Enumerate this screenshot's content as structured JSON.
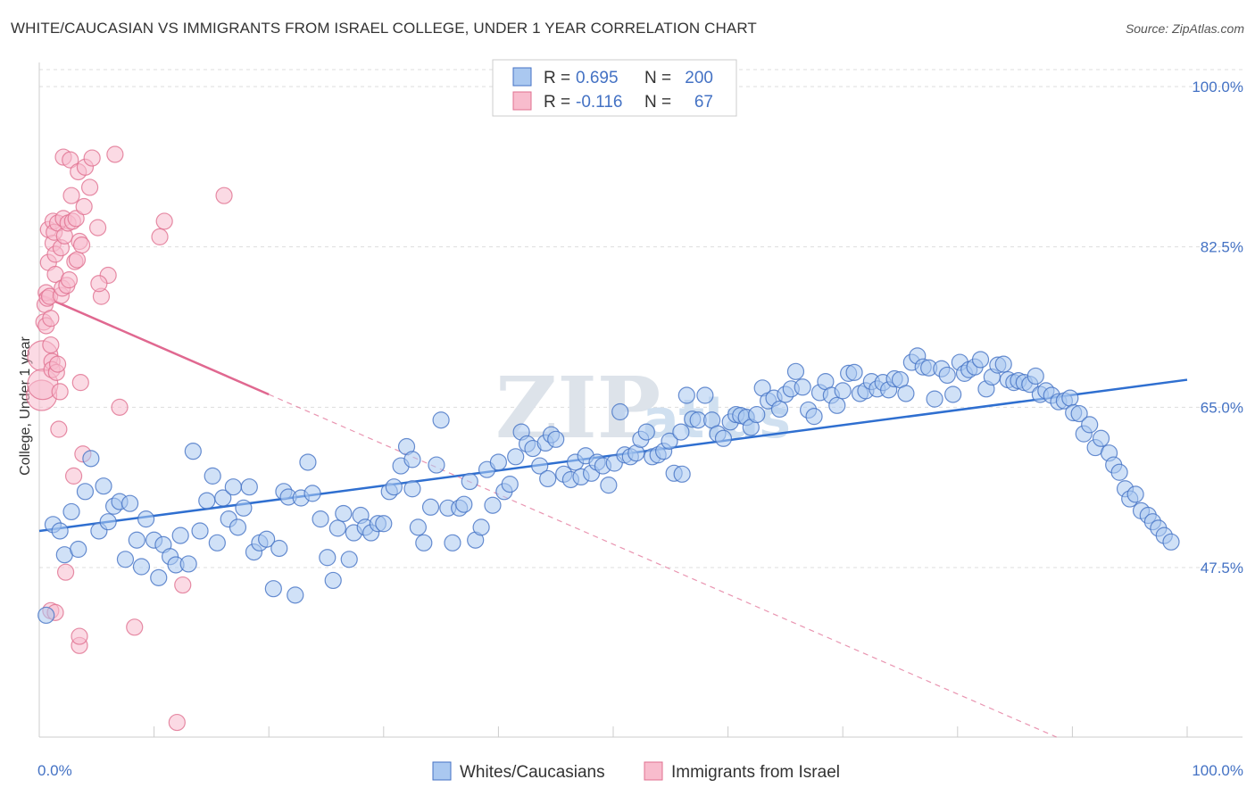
{
  "header": {
    "title": "WHITE/CAUCASIAN VS IMMIGRANTS FROM ISRAEL COLLEGE, UNDER 1 YEAR CORRELATION CHART",
    "source": "Source: ZipAtlas.com"
  },
  "watermark": {
    "zip": "ZIP",
    "atlas": "atlas"
  },
  "colors": {
    "blue": "#4472c4",
    "blue_fill": "#aac8f0",
    "blue_line": "#2f6fd0",
    "pink": "#e07090",
    "pink_fill": "#f8bccd",
    "pink_line": "#e06890",
    "grid": "#dddddd"
  },
  "legend": {
    "rows": [
      {
        "r_label": "R =",
        "r_value": "0.695",
        "n_label": "N =",
        "n_value": "200"
      },
      {
        "r_label": "R =",
        "r_value": "-0.116",
        "n_label": "N =",
        "n_value": "67"
      }
    ]
  },
  "bottom_legend": [
    "Whites/Caucasians",
    "Immigrants from Israel"
  ],
  "chart_data": {
    "type": "scatter",
    "title": "WHITE/CAUCASIAN VS IMMIGRANTS FROM ISRAEL COLLEGE, UNDER 1 YEAR CORRELATION CHART",
    "xlabel": "",
    "ylabel": "College, Under 1 year",
    "xlim": [
      0,
      100
    ],
    "ylim": [
      29,
      102
    ],
    "x_tick_labels": [
      "0.0%",
      "100.0%"
    ],
    "y_ticks": [
      47.5,
      65.0,
      82.5,
      100.0
    ],
    "y_tick_labels": [
      "47.5%",
      "65.0%",
      "82.5%",
      "100.0%"
    ],
    "grid": true,
    "legend_position": "top-center",
    "series": [
      {
        "name": "Whites/Caucasians",
        "r": 0.695,
        "n": 200,
        "trend": {
          "x": [
            0,
            100
          ],
          "y": [
            51.5,
            68.0
          ]
        },
        "points": [
          [
            0.6,
            42.3
          ],
          [
            1.2,
            52.2
          ],
          [
            1.8,
            51.5
          ],
          [
            2.2,
            48.9
          ],
          [
            2.8,
            53.6
          ],
          [
            3.4,
            49.5
          ],
          [
            4.0,
            55.8
          ],
          [
            4.5,
            59.4
          ],
          [
            5.2,
            51.5
          ],
          [
            5.6,
            56.4
          ],
          [
            6.0,
            52.5
          ],
          [
            6.5,
            54.2
          ],
          [
            7.0,
            54.7
          ],
          [
            7.5,
            48.4
          ],
          [
            7.9,
            54.5
          ],
          [
            8.5,
            50.5
          ],
          [
            8.9,
            47.6
          ],
          [
            9.3,
            52.8
          ],
          [
            10.0,
            50.5
          ],
          [
            10.4,
            46.4
          ],
          [
            10.8,
            50.0
          ],
          [
            11.4,
            48.7
          ],
          [
            11.9,
            47.8
          ],
          [
            12.3,
            51.0
          ],
          [
            13.0,
            47.9
          ],
          [
            13.4,
            60.2
          ],
          [
            14.0,
            51.5
          ],
          [
            14.6,
            54.8
          ],
          [
            15.1,
            57.5
          ],
          [
            15.5,
            50.2
          ],
          [
            16.0,
            55.1
          ],
          [
            16.5,
            52.8
          ],
          [
            16.9,
            56.3
          ],
          [
            17.3,
            51.9
          ],
          [
            17.8,
            54.0
          ],
          [
            18.3,
            56.3
          ],
          [
            18.7,
            49.2
          ],
          [
            19.2,
            50.2
          ],
          [
            19.8,
            50.6
          ],
          [
            20.4,
            45.2
          ],
          [
            20.9,
            49.6
          ],
          [
            21.3,
            55.8
          ],
          [
            21.7,
            55.2
          ],
          [
            22.3,
            44.5
          ],
          [
            22.8,
            55.1
          ],
          [
            23.4,
            59.0
          ],
          [
            23.8,
            55.6
          ],
          [
            24.5,
            52.8
          ],
          [
            25.1,
            48.6
          ],
          [
            25.6,
            46.1
          ],
          [
            26.0,
            51.8
          ],
          [
            26.5,
            53.4
          ],
          [
            27.0,
            48.4
          ],
          [
            27.4,
            51.3
          ],
          [
            28.0,
            53.2
          ],
          [
            28.4,
            51.9
          ],
          [
            28.9,
            51.3
          ],
          [
            29.5,
            52.3
          ],
          [
            30.0,
            52.3
          ],
          [
            30.5,
            55.8
          ],
          [
            30.9,
            56.3
          ],
          [
            31.5,
            58.6
          ],
          [
            32.0,
            60.7
          ],
          [
            32.5,
            59.3
          ],
          [
            33.0,
            51.9
          ],
          [
            33.5,
            50.2
          ],
          [
            34.1,
            54.1
          ],
          [
            34.6,
            58.7
          ],
          [
            35.0,
            63.6
          ],
          [
            35.6,
            54.0
          ],
          [
            36.0,
            50.2
          ],
          [
            36.6,
            54.0
          ],
          [
            37.0,
            54.4
          ],
          [
            37.5,
            56.9
          ],
          [
            38.0,
            50.5
          ],
          [
            38.5,
            51.9
          ],
          [
            39.0,
            58.2
          ],
          [
            39.5,
            54.3
          ],
          [
            40.0,
            59.0
          ],
          [
            40.5,
            55.8
          ],
          [
            41.0,
            56.6
          ],
          [
            41.5,
            59.6
          ],
          [
            42.0,
            62.3
          ],
          [
            42.5,
            61.0
          ],
          [
            43.0,
            60.5
          ],
          [
            43.6,
            58.6
          ],
          [
            44.1,
            61.1
          ],
          [
            44.6,
            62.0
          ],
          [
            45.0,
            61.5
          ],
          [
            45.7,
            57.7
          ],
          [
            46.3,
            57.1
          ],
          [
            46.7,
            59.0
          ],
          [
            47.2,
            57.4
          ],
          [
            47.6,
            59.7
          ],
          [
            48.1,
            57.8
          ],
          [
            48.6,
            59.0
          ],
          [
            49.1,
            58.6
          ],
          [
            49.6,
            56.5
          ],
          [
            50.1,
            58.9
          ],
          [
            50.6,
            64.5
          ],
          [
            51.0,
            59.8
          ],
          [
            51.5,
            59.6
          ],
          [
            52.0,
            60.0
          ],
          [
            52.4,
            61.5
          ],
          [
            52.9,
            62.3
          ],
          [
            53.4,
            59.6
          ],
          [
            53.9,
            59.8
          ],
          [
            54.4,
            60.2
          ],
          [
            54.9,
            61.3
          ],
          [
            55.3,
            57.8
          ],
          [
            55.9,
            62.3
          ],
          [
            56.4,
            66.3
          ],
          [
            56.9,
            63.7
          ],
          [
            57.4,
            63.6
          ],
          [
            58.0,
            66.3
          ],
          [
            58.6,
            63.6
          ],
          [
            59.1,
            62.1
          ],
          [
            59.6,
            61.6
          ],
          [
            60.2,
            63.4
          ],
          [
            60.7,
            64.2
          ],
          [
            61.1,
            64.1
          ],
          [
            61.6,
            63.9
          ],
          [
            62.0,
            62.8
          ],
          [
            62.5,
            64.2
          ],
          [
            63.0,
            67.1
          ],
          [
            63.5,
            65.7
          ],
          [
            64.0,
            66.0
          ],
          [
            64.5,
            64.8
          ],
          [
            65.0,
            66.4
          ],
          [
            65.5,
            67.0
          ],
          [
            65.9,
            68.9
          ],
          [
            66.5,
            67.2
          ],
          [
            67.0,
            64.7
          ],
          [
            67.5,
            64.0
          ],
          [
            68.0,
            66.6
          ],
          [
            68.5,
            67.8
          ],
          [
            69.0,
            66.3
          ],
          [
            69.5,
            65.2
          ],
          [
            70.0,
            66.8
          ],
          [
            70.5,
            68.7
          ],
          [
            71.0,
            68.8
          ],
          [
            71.5,
            66.5
          ],
          [
            72.0,
            66.8
          ],
          [
            72.5,
            67.8
          ],
          [
            73.0,
            67.0
          ],
          [
            73.5,
            67.7
          ],
          [
            74.0,
            66.9
          ],
          [
            74.5,
            68.1
          ],
          [
            75.0,
            68.0
          ],
          [
            75.5,
            66.5
          ],
          [
            76.0,
            69.9
          ],
          [
            76.5,
            70.6
          ],
          [
            77.0,
            69.4
          ],
          [
            77.5,
            69.3
          ],
          [
            78.0,
            65.9
          ],
          [
            78.6,
            69.2
          ],
          [
            79.1,
            68.5
          ],
          [
            79.6,
            66.4
          ],
          [
            80.2,
            69.9
          ],
          [
            80.6,
            68.7
          ],
          [
            81.0,
            69.1
          ],
          [
            81.5,
            69.4
          ],
          [
            82.0,
            70.2
          ],
          [
            82.5,
            67.0
          ],
          [
            83.0,
            68.3
          ],
          [
            83.5,
            69.6
          ],
          [
            84.0,
            69.7
          ],
          [
            84.4,
            68.0
          ],
          [
            84.9,
            67.7
          ],
          [
            85.3,
            67.9
          ],
          [
            85.8,
            67.7
          ],
          [
            86.3,
            67.5
          ],
          [
            86.8,
            68.4
          ],
          [
            87.2,
            66.4
          ],
          [
            87.7,
            66.8
          ],
          [
            88.2,
            66.3
          ],
          [
            88.8,
            65.6
          ],
          [
            89.3,
            65.7
          ],
          [
            89.8,
            66.0
          ],
          [
            90.1,
            64.4
          ],
          [
            90.6,
            64.3
          ],
          [
            91.0,
            62.1
          ],
          [
            91.5,
            63.1
          ],
          [
            92.0,
            60.6
          ],
          [
            92.5,
            61.6
          ],
          [
            93.2,
            60.0
          ],
          [
            93.6,
            58.7
          ],
          [
            94.1,
            57.9
          ],
          [
            94.6,
            56.1
          ],
          [
            95.0,
            55.0
          ],
          [
            95.5,
            55.5
          ],
          [
            96.0,
            53.7
          ],
          [
            96.6,
            53.2
          ],
          [
            97.0,
            52.5
          ],
          [
            97.5,
            51.8
          ],
          [
            98.0,
            51.0
          ],
          [
            98.6,
            50.3
          ],
          [
            56.0,
            57.7
          ],
          [
            32.5,
            56.1
          ],
          [
            44.3,
            57.2
          ]
        ]
      },
      {
        "name": "Immigrants from Israel",
        "r": -0.116,
        "n": 67,
        "trend": {
          "x": [
            0,
            20
          ],
          "y": [
            77.3,
            66.4
          ]
        },
        "trend_dashed": {
          "x": [
            20,
            100
          ],
          "y": [
            66.4,
            22.8
          ]
        },
        "points": [
          [
            0.2,
            66.3
          ],
          [
            0.3,
            70.6
          ],
          [
            0.3,
            67.5
          ],
          [
            0.4,
            74.3
          ],
          [
            0.5,
            76.2
          ],
          [
            0.6,
            73.9
          ],
          [
            0.6,
            77.5
          ],
          [
            0.7,
            76.9
          ],
          [
            0.8,
            80.8
          ],
          [
            0.8,
            84.4
          ],
          [
            0.9,
            77.1
          ],
          [
            1.0,
            74.7
          ],
          [
            1.0,
            71.8
          ],
          [
            1.1,
            70.0
          ],
          [
            1.1,
            69.1
          ],
          [
            1.2,
            85.3
          ],
          [
            1.2,
            82.9
          ],
          [
            1.3,
            84.1
          ],
          [
            1.4,
            79.5
          ],
          [
            1.4,
            81.7
          ],
          [
            1.5,
            68.8
          ],
          [
            1.6,
            85.1
          ],
          [
            1.6,
            69.7
          ],
          [
            1.7,
            62.6
          ],
          [
            1.8,
            66.7
          ],
          [
            1.9,
            82.4
          ],
          [
            1.9,
            77.2
          ],
          [
            2.0,
            78.0
          ],
          [
            2.1,
            92.3
          ],
          [
            2.1,
            85.6
          ],
          [
            2.2,
            83.7
          ],
          [
            2.3,
            47.0
          ],
          [
            2.4,
            78.3
          ],
          [
            2.5,
            85.1
          ],
          [
            2.6,
            78.9
          ],
          [
            2.7,
            92.0
          ],
          [
            2.8,
            88.1
          ],
          [
            2.9,
            85.3
          ],
          [
            3.0,
            57.5
          ],
          [
            3.1,
            80.9
          ],
          [
            3.2,
            85.6
          ],
          [
            3.3,
            81.1
          ],
          [
            3.4,
            90.7
          ],
          [
            3.5,
            83.1
          ],
          [
            3.6,
            67.7
          ],
          [
            3.7,
            82.7
          ],
          [
            3.8,
            59.9
          ],
          [
            3.9,
            86.9
          ],
          [
            4.0,
            91.2
          ],
          [
            4.4,
            89.0
          ],
          [
            4.6,
            92.2
          ],
          [
            5.1,
            84.6
          ],
          [
            5.4,
            77.1
          ],
          [
            6.0,
            79.4
          ],
          [
            6.6,
            92.6
          ],
          [
            8.3,
            41.0
          ],
          [
            10.5,
            83.6
          ],
          [
            10.9,
            85.3
          ],
          [
            12.0,
            30.6
          ],
          [
            12.5,
            45.6
          ],
          [
            16.1,
            88.1
          ],
          [
            3.5,
            39.0
          ],
          [
            3.5,
            40.0
          ],
          [
            1.0,
            42.8
          ],
          [
            1.4,
            42.6
          ],
          [
            5.2,
            78.5
          ],
          [
            7.0,
            65.0
          ]
        ]
      }
    ]
  }
}
